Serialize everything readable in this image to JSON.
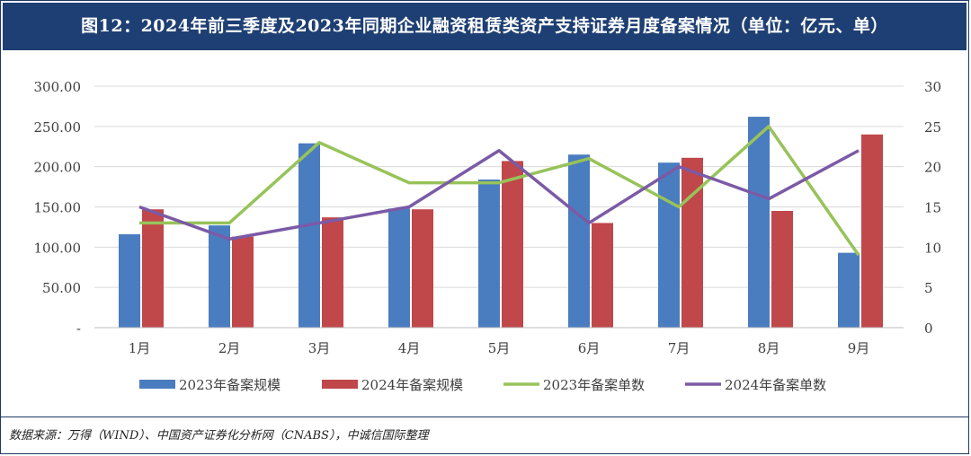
{
  "title": "图12：2024年前三季度及2023年同期企业融资租赁类资产支持证券月度备案情况（单位：亿元、单）",
  "source": "数据来源：万得（WIND）、中国资产证券化分析网（CNABS），中诚信国际整理",
  "chart_data": {
    "type": "bar",
    "categories": [
      "1月",
      "2月",
      "3月",
      "4月",
      "5月",
      "6月",
      "7月",
      "8月",
      "9月"
    ],
    "left_axis": {
      "ylim": [
        0,
        300
      ],
      "ticks": [
        0,
        50,
        100,
        150,
        200,
        250,
        300
      ],
      "tick_labels": [
        "-",
        "50.00",
        "100.00",
        "150.00",
        "200.00",
        "250.00",
        "300.00"
      ]
    },
    "right_axis": {
      "ylim": [
        0,
        30
      ],
      "ticks": [
        0,
        5,
        10,
        15,
        20,
        25,
        30
      ],
      "tick_labels": [
        "0",
        "5",
        "10",
        "15",
        "20",
        "25",
        "30"
      ]
    },
    "grid": true,
    "legend_position": "bottom",
    "series": [
      {
        "name": "2023年备案规模",
        "kind": "bar",
        "axis": "left",
        "color": "#4a7cc0",
        "values": [
          116,
          127,
          229,
          148,
          184,
          215,
          205,
          262,
          93
        ]
      },
      {
        "name": "2024年备案规模",
        "kind": "bar",
        "axis": "left",
        "color": "#c0474a",
        "values": [
          147,
          113,
          137,
          147,
          207,
          130,
          211,
          145,
          240
        ]
      },
      {
        "name": "2023年备案单数",
        "kind": "line",
        "axis": "right",
        "color": "#97c35a",
        "values": [
          13,
          13,
          23,
          18,
          18,
          21,
          15,
          25,
          9
        ]
      },
      {
        "name": "2024年备案单数",
        "kind": "line",
        "axis": "right",
        "color": "#7b5aa6",
        "values": [
          15,
          11,
          13,
          15,
          22,
          13,
          20,
          16,
          22
        ]
      }
    ]
  }
}
